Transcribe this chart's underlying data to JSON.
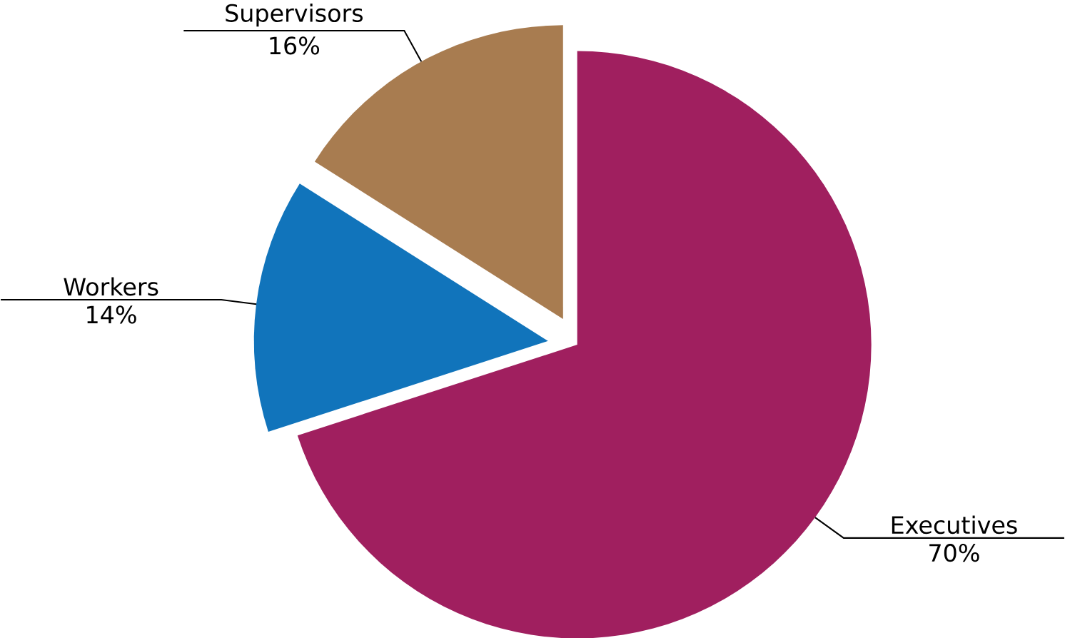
{
  "chart_data": {
    "type": "pie",
    "categories": [
      "Executives",
      "Workers",
      "Supervisors"
    ],
    "values": [
      70,
      14,
      16
    ],
    "value_labels": [
      "70%",
      "14%",
      "16%"
    ],
    "colors": [
      "#a01f5f",
      "#1174bb",
      "#a87c50"
    ]
  }
}
